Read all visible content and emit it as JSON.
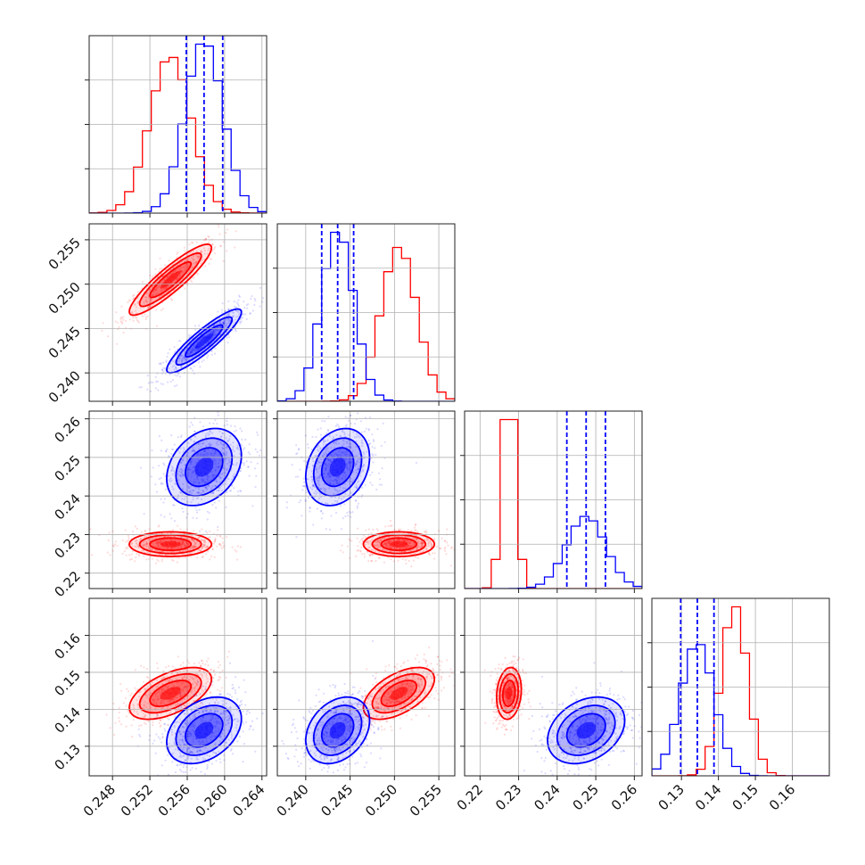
{
  "chart_data": {
    "type": "corner",
    "title": "",
    "colors": {
      "series_a": "#ff0000",
      "series_b": "#0000ff",
      "grid": "#b0b0b0"
    },
    "series": [
      {
        "color": "#ff0000",
        "means": [
          0.2542,
          0.2505,
          0.2275,
          0.1443
        ],
        "sigmas": [
          0.0022,
          0.002,
          0.0016,
          0.0035
        ],
        "correlations": {
          "1-0": 0.9,
          "2-0": 0.0,
          "2-1": 0.0,
          "3-0": 0.55,
          "3-1": 0.55,
          "3-2": 0.15
        }
      },
      {
        "color": "#0000ff",
        "means": [
          0.2578,
          0.2436,
          0.2475,
          0.1343
        ],
        "sigmas": [
          0.002,
          0.0018,
          0.005,
          0.0045
        ],
        "correlations": {
          "1-0": 0.9,
          "2-0": 0.3,
          "2-1": 0.25,
          "3-0": 0.35,
          "3-1": 0.3,
          "3-2": 0.3
        }
      }
    ],
    "quantiles_blue": [
      [
        0.2559,
        0.2578,
        0.2598
      ],
      [
        0.2418,
        0.2436,
        0.2454
      ],
      [
        0.2425,
        0.2475,
        0.2525
      ],
      [
        0.1298,
        0.1343,
        0.1388
      ]
    ],
    "axes": [
      {
        "range": [
          0.2455,
          0.2645
        ],
        "ticks": [
          0.248,
          0.252,
          0.256,
          0.26,
          0.264
        ],
        "tick_labels": [
          "0.248",
          "0.252",
          "0.256",
          "0.260",
          "0.264"
        ]
      },
      {
        "range": [
          0.2368,
          0.2568
        ],
        "ticks": [
          0.24,
          0.245,
          0.25,
          0.255
        ],
        "tick_labels": [
          "0.240",
          "0.245",
          "0.250",
          "0.255"
        ]
      },
      {
        "range": [
          0.216,
          0.262
        ],
        "ticks": [
          0.22,
          0.23,
          0.24,
          0.25,
          0.26
        ],
        "tick_labels": [
          "0.22",
          "0.23",
          "0.24",
          "0.25",
          "0.26"
        ]
      },
      {
        "range": [
          0.122,
          0.17
        ],
        "ticks": [
          0.13,
          0.14,
          0.15,
          0.16
        ],
        "tick_labels": [
          "0.13",
          "0.14",
          "0.15",
          "0.16"
        ]
      }
    ]
  }
}
